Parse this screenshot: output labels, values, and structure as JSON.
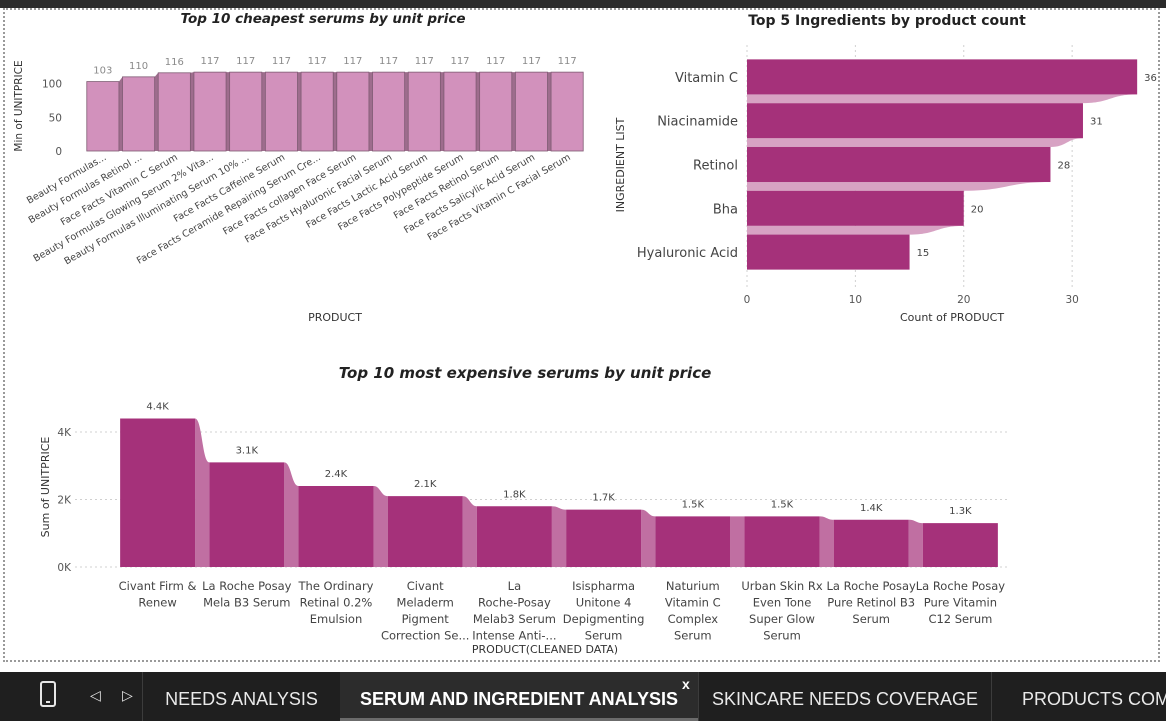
{
  "tabs": {
    "items": [
      {
        "label": "NEEDS ANALYSIS"
      },
      {
        "label": "SERUM AND INGREDIENT ANALYSIS"
      },
      {
        "label": "SKINCARE NEEDS COVERAGE"
      },
      {
        "label": "PRODUCTS COMP"
      }
    ],
    "close": "x"
  },
  "chart_data": [
    {
      "type": "bar",
      "title": "Top 10 cheapest serums by unit price",
      "xlabel": "PRODUCT",
      "ylabel": "Min of UNITPRICE",
      "ylim": [
        0,
        135
      ],
      "yticks": [
        "0",
        "50",
        "100"
      ],
      "grid": false,
      "color": "#d291bc",
      "categories": [
        "Beauty Formulas...",
        "Beauty Formulas Retinol ...",
        "Face Facts Vitamin C Serum",
        "Beauty Formulas Glowing Serum 2% Vita...",
        "Beauty Formulas Illuminating Serum 10% ...",
        "Face Facts Caffeine Serum",
        "Face Facts Ceramide Repairing Serum Cre...",
        "Face Facts collagen Face Serum",
        "Face Facts Hyaluronic Facial Serum",
        "Face Facts Lactic Acid Serum",
        "Face Facts Polypeptide Serum",
        "Face Facts Retinol Serum",
        "Face Facts Salicylic Acid Serum",
        "Face Facts Vitamin C Facial Serum"
      ],
      "values": [
        103,
        110,
        116,
        117,
        117,
        117,
        117,
        117,
        117,
        117,
        117,
        117,
        117,
        117
      ],
      "labels": [
        "103",
        "110",
        "116",
        "117",
        "117",
        "117",
        "117",
        "117",
        "117",
        "117",
        "117",
        "117",
        "117",
        "117"
      ]
    },
    {
      "type": "bar",
      "orientation": "horizontal",
      "title": "Top 5 Ingredients by product count",
      "xlabel": "Count of PRODUCT",
      "ylabel": "INGREDIENT LIST",
      "xlim": [
        0,
        37
      ],
      "xticks": [
        "0",
        "10",
        "20",
        "30"
      ],
      "grid": true,
      "color": "#a5317a",
      "categories": [
        "Vitamin C",
        "Niacinamide",
        "Retinol",
        "Bha",
        "Hyaluronic Acid"
      ],
      "values": [
        36,
        31,
        28,
        20,
        15
      ],
      "labels": [
        "36",
        "31",
        "28",
        "20",
        "15"
      ]
    },
    {
      "type": "bar",
      "title": "Top 10 most expensive serums by unit price",
      "xlabel": "PRODUCT(CLEANED DATA)",
      "ylabel": "Sum of UNITPRICE",
      "ylim": [
        0,
        4800
      ],
      "yticks": [
        "0K",
        "2K",
        "4K"
      ],
      "grid": true,
      "color": "#a5317a",
      "categories": [
        [
          "Civant Firm &",
          "Renew"
        ],
        [
          "La Roche Posay",
          "Mela B3 Serum"
        ],
        [
          "The Ordinary",
          "Retinal 0.2%",
          "Emulsion"
        ],
        [
          "Civant",
          "Meladerm",
          "Pigment",
          "Correction Se..."
        ],
        [
          "La",
          "Roche-Posay",
          "Melab3 Serum",
          "Intense Anti-..."
        ],
        [
          "Isispharma",
          "Unitone 4",
          "Depigmenting",
          "Serum"
        ],
        [
          "Naturium",
          "Vitamin C",
          "Complex",
          "Serum"
        ],
        [
          "Urban Skin Rx",
          "Even Tone",
          "Super Glow",
          "Serum"
        ],
        [
          "La Roche Posay",
          "Pure Retinol B3",
          "Serum"
        ],
        [
          "La Roche Posay",
          "Pure Vitamin",
          "C12 Serum"
        ]
      ],
      "values": [
        4400,
        3100,
        2400,
        2100,
        1800,
        1700,
        1500,
        1500,
        1400,
        1300
      ],
      "labels": [
        "4.4K",
        "3.1K",
        "2.4K",
        "2.1K",
        "1.8K",
        "1.7K",
        "1.5K",
        "1.5K",
        "1.4K",
        "1.3K"
      ]
    }
  ]
}
